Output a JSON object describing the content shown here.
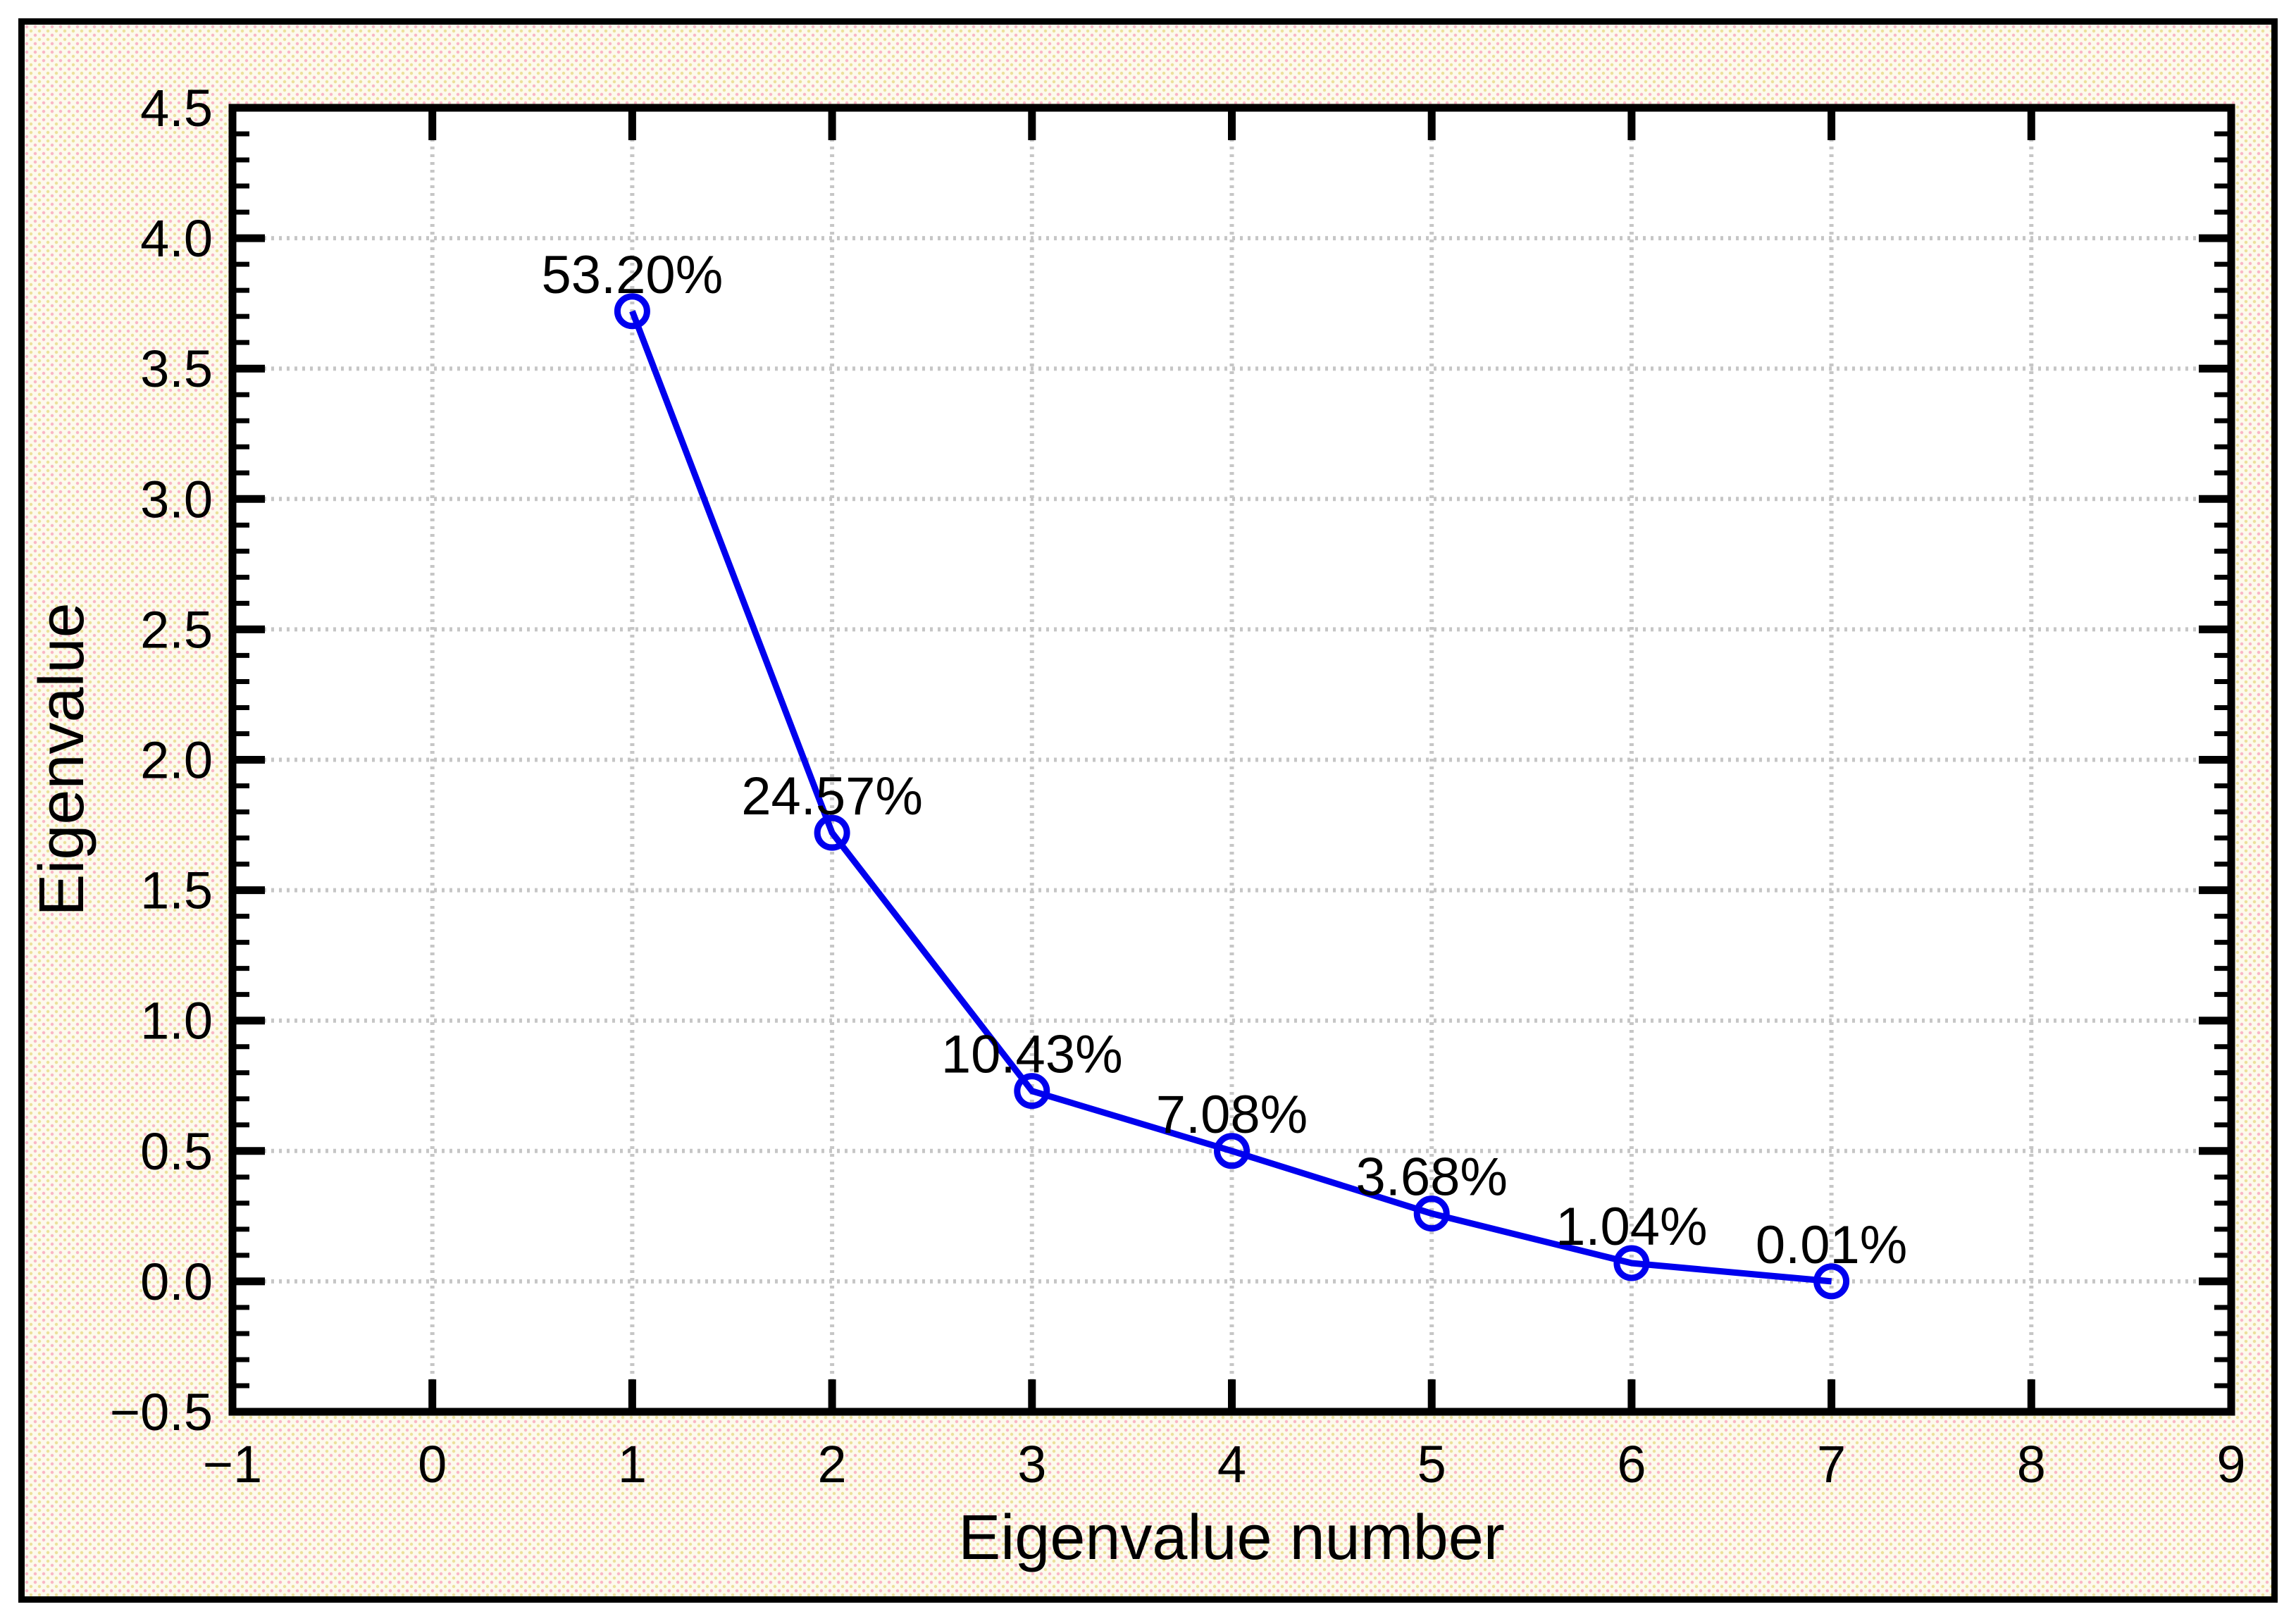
{
  "figure": {
    "x_axis_title": "Eigenvalue number",
    "y_axis_title": "Eigenvalue",
    "outer_background": "#fdfaed",
    "speckle_pink": "#f8aabe",
    "speckle_yellow": "#e9dc8c",
    "border_color": "#000000",
    "plot_background": "#ffffff",
    "frame_color": "#000000",
    "grid_color": "#c6c6c6",
    "text_color": "#000000"
  },
  "chart_data": {
    "type": "line",
    "title": "",
    "xlabel": "Eigenvalue number",
    "ylabel": "Eigenvalue",
    "x": [
      1,
      2,
      3,
      4,
      5,
      6,
      7
    ],
    "y": [
      3.72,
      1.72,
      0.73,
      0.5,
      0.26,
      0.07,
      0.0
    ],
    "point_labels": [
      "53.20%",
      "24.57%",
      "10.43%",
      "7.08%",
      "3.68%",
      "1.04%",
      "0.01%"
    ],
    "xlim": [
      -1,
      9
    ],
    "ylim": [
      -0.5,
      4.5
    ],
    "x_ticks": [
      -1,
      0,
      1,
      2,
      3,
      4,
      5,
      6,
      7,
      8,
      9
    ],
    "x_tick_labels": [
      "−1",
      "0",
      "1",
      "2",
      "3",
      "4",
      "5",
      "6",
      "7",
      "8",
      "9"
    ],
    "y_ticks": [
      -0.5,
      0.0,
      0.5,
      1.0,
      1.5,
      2.0,
      2.5,
      3.0,
      3.5,
      4.0,
      4.5
    ],
    "y_tick_labels": [
      "−0.5",
      "0.0",
      "0.5",
      "1.0",
      "1.5",
      "2.0",
      "2.5",
      "3.0",
      "3.5",
      "4.0",
      "4.5"
    ],
    "y_minor_step": 0.1,
    "grid": true,
    "legend": "none",
    "line_color": "#0000ee",
    "marker": "open-circle",
    "marker_color": "#0000ee"
  }
}
